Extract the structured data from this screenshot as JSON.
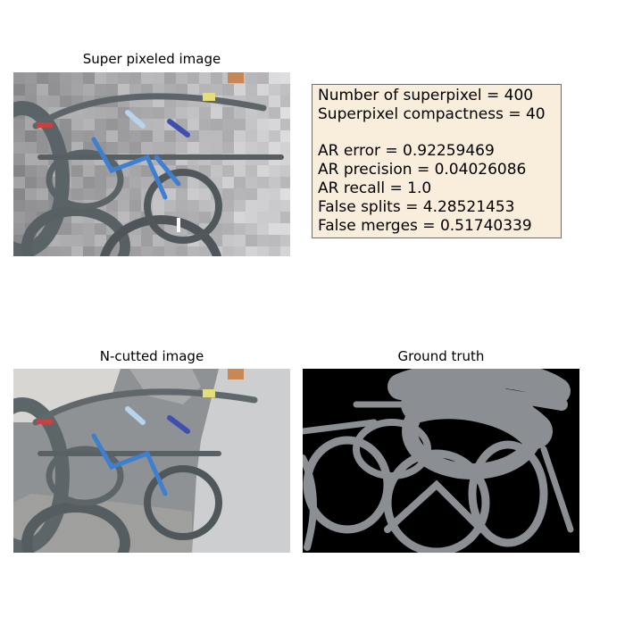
{
  "panels": {
    "superpixel": {
      "title": "Super pixeled image"
    },
    "ncut": {
      "title": "N-cutted image"
    },
    "ground_truth": {
      "title": "Ground truth"
    }
  },
  "stats": {
    "line1": "Number of superpixel = 400",
    "line2": "Superpixel compactness = 40",
    "line3": "AR error = 0.92259469",
    "line4": "AR precision = 0.04026086",
    "line5": "AR recall = 1.0",
    "line6": "False splits = 4.28521453",
    "line7": "False merges = 0.51740339"
  },
  "colors": {
    "stats_background": "#f9eedb",
    "ground_truth_foreground": "#8b8e92",
    "ground_truth_background": "#000000",
    "bike_blue": "#3f7fd0",
    "bike_red": "#c84040",
    "bike_yellow": "#e5dd7a",
    "bike_orange": "#c88855"
  }
}
